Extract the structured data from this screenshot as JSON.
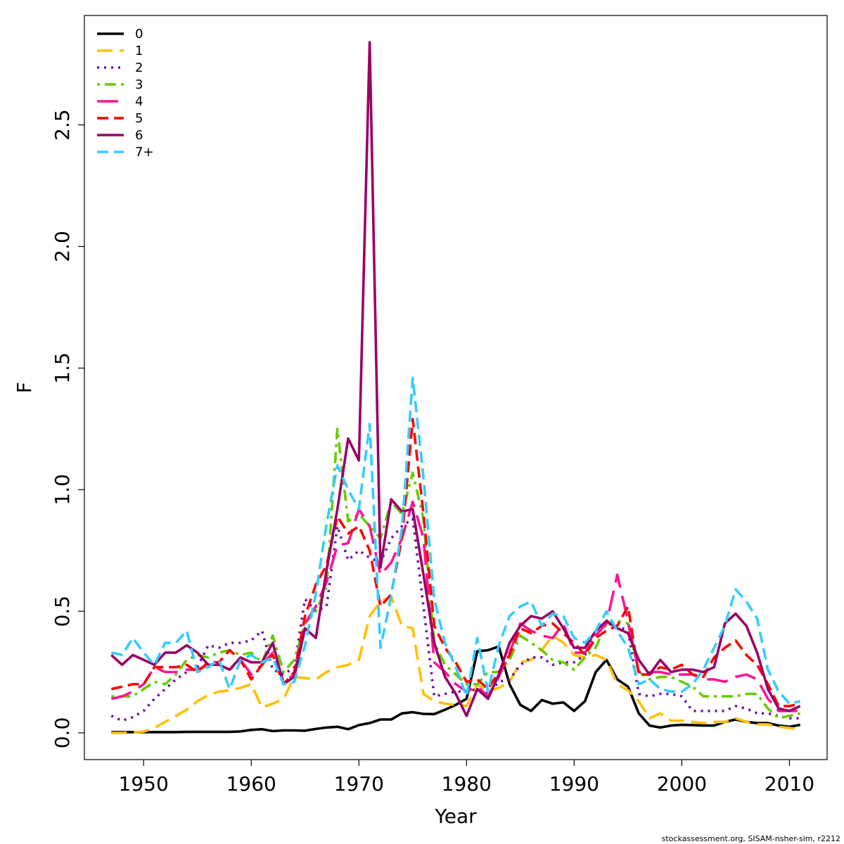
{
  "chart_data": {
    "type": "line",
    "xlabel": "Year",
    "ylabel": "F",
    "xlim": [
      1944.5,
      2013.5
    ],
    "ylim": [
      -0.11,
      2.95
    ],
    "xticks": [
      1950,
      1960,
      1970,
      1980,
      1990,
      2000,
      2010
    ],
    "yticks": [
      0.0,
      0.5,
      1.0,
      1.5,
      2.0,
      2.5
    ],
    "ytick_labels": [
      "0.0",
      "0.5",
      "1.0",
      "1.5",
      "2.0",
      "2.5"
    ],
    "legend_position": "top-left",
    "x": [
      1947,
      1948,
      1949,
      1950,
      1951,
      1952,
      1953,
      1954,
      1955,
      1956,
      1957,
      1958,
      1959,
      1960,
      1961,
      1962,
      1963,
      1964,
      1965,
      1966,
      1967,
      1968,
      1969,
      1970,
      1971,
      1972,
      1973,
      1974,
      1975,
      1976,
      1977,
      1978,
      1979,
      1980,
      1981,
      1982,
      1983,
      1984,
      1985,
      1986,
      1987,
      1988,
      1989,
      1990,
      1991,
      1992,
      1993,
      1994,
      1995,
      1996,
      1997,
      1998,
      1999,
      2000,
      2001,
      2002,
      2003,
      2004,
      2005,
      2006,
      2007,
      2008,
      2009,
      2010,
      2011
    ],
    "series": [
      {
        "name": "0",
        "color": "#000000",
        "dash": "solid",
        "values": [
          0.003,
          0.003,
          0.003,
          0.003,
          0.003,
          0.003,
          0.003,
          0.004,
          0.004,
          0.004,
          0.004,
          0.004,
          0.006,
          0.012,
          0.015,
          0.007,
          0.01,
          0.01,
          0.009,
          0.016,
          0.022,
          0.025,
          0.015,
          0.032,
          0.04,
          0.055,
          0.055,
          0.08,
          0.085,
          0.078,
          0.077,
          0.095,
          0.115,
          0.14,
          0.335,
          0.34,
          0.355,
          0.2,
          0.115,
          0.09,
          0.135,
          0.12,
          0.125,
          0.09,
          0.13,
          0.25,
          0.3,
          0.22,
          0.19,
          0.08,
          0.03,
          0.022,
          0.03,
          0.033,
          0.032,
          0.03,
          0.03,
          0.045,
          0.055,
          0.045,
          0.04,
          0.04,
          0.03,
          0.025,
          0.033
        ]
      },
      {
        "name": "1",
        "color": "#ffc000",
        "dash": "long",
        "values": [
          0.0,
          0.0,
          0.002,
          0.005,
          0.02,
          0.045,
          0.07,
          0.095,
          0.13,
          0.155,
          0.17,
          0.175,
          0.185,
          0.2,
          0.105,
          0.12,
          0.14,
          0.23,
          0.225,
          0.22,
          0.25,
          0.27,
          0.28,
          0.3,
          0.48,
          0.54,
          0.56,
          0.44,
          0.43,
          0.16,
          0.13,
          0.12,
          0.115,
          0.11,
          0.2,
          0.17,
          0.185,
          0.21,
          0.29,
          0.3,
          0.34,
          0.4,
          0.37,
          0.32,
          0.31,
          0.32,
          0.3,
          0.2,
          0.175,
          0.13,
          0.06,
          0.08,
          0.05,
          0.05,
          0.045,
          0.04,
          0.045,
          0.045,
          0.06,
          0.045,
          0.035,
          0.035,
          0.025,
          0.02,
          0.015
        ]
      },
      {
        "name": "2",
        "color": "#6a0dad",
        "dash": "dot",
        "values": [
          0.07,
          0.05,
          0.065,
          0.09,
          0.14,
          0.18,
          0.22,
          0.25,
          0.27,
          0.36,
          0.35,
          0.37,
          0.37,
          0.38,
          0.42,
          0.26,
          0.24,
          0.27,
          0.55,
          0.5,
          0.52,
          0.85,
          0.71,
          0.75,
          0.72,
          0.7,
          0.8,
          0.85,
          0.88,
          0.52,
          0.15,
          0.16,
          0.17,
          0.17,
          0.18,
          0.16,
          0.21,
          0.22,
          0.28,
          0.31,
          0.31,
          0.28,
          0.29,
          0.29,
          0.32,
          0.42,
          0.45,
          0.44,
          0.42,
          0.16,
          0.15,
          0.16,
          0.16,
          0.15,
          0.09,
          0.09,
          0.09,
          0.09,
          0.11,
          0.1,
          0.08,
          0.08,
          0.07,
          0.06,
          0.06
        ]
      },
      {
        "name": "3",
        "color": "#66cc00",
        "dash": "dotdash",
        "values": [
          0.15,
          0.15,
          0.15,
          0.18,
          0.21,
          0.2,
          0.24,
          0.3,
          0.32,
          0.31,
          0.33,
          0.34,
          0.32,
          0.33,
          0.29,
          0.4,
          0.25,
          0.3,
          0.45,
          0.5,
          0.6,
          1.25,
          0.87,
          0.9,
          0.85,
          0.8,
          0.95,
          0.9,
          1.07,
          0.88,
          0.37,
          0.28,
          0.24,
          0.2,
          0.2,
          0.25,
          0.25,
          0.3,
          0.4,
          0.37,
          0.34,
          0.3,
          0.29,
          0.26,
          0.31,
          0.35,
          0.45,
          0.46,
          0.45,
          0.25,
          0.22,
          0.23,
          0.23,
          0.21,
          0.19,
          0.15,
          0.15,
          0.15,
          0.15,
          0.16,
          0.16,
          0.1,
          0.06,
          0.07,
          0.08
        ]
      },
      {
        "name": "4",
        "color": "#ff1493",
        "dash": "longdash",
        "values": [
          0.14,
          0.15,
          0.17,
          0.2,
          0.27,
          0.25,
          0.25,
          0.26,
          0.26,
          0.28,
          0.28,
          0.26,
          0.3,
          0.24,
          0.28,
          0.33,
          0.21,
          0.24,
          0.45,
          0.52,
          0.62,
          0.77,
          0.78,
          0.92,
          0.85,
          0.65,
          0.7,
          0.8,
          0.95,
          0.8,
          0.29,
          0.25,
          0.2,
          0.17,
          0.19,
          0.15,
          0.23,
          0.33,
          0.45,
          0.42,
          0.4,
          0.39,
          0.45,
          0.33,
          0.33,
          0.4,
          0.45,
          0.65,
          0.46,
          0.25,
          0.25,
          0.25,
          0.24,
          0.24,
          0.24,
          0.22,
          0.22,
          0.21,
          0.23,
          0.24,
          0.22,
          0.14,
          0.09,
          0.09,
          0.09
        ]
      },
      {
        "name": "5",
        "color": "#ff0000",
        "dash": "dash",
        "values": [
          0.18,
          0.19,
          0.2,
          0.2,
          0.27,
          0.27,
          0.27,
          0.28,
          0.25,
          0.29,
          0.29,
          0.34,
          0.3,
          0.22,
          0.28,
          0.32,
          0.2,
          0.25,
          0.48,
          0.61,
          0.69,
          0.89,
          0.82,
          0.85,
          0.75,
          0.52,
          0.57,
          0.8,
          1.29,
          0.9,
          0.44,
          0.35,
          0.29,
          0.21,
          0.22,
          0.18,
          0.25,
          0.32,
          0.43,
          0.41,
          0.44,
          0.45,
          0.41,
          0.37,
          0.32,
          0.39,
          0.42,
          0.44,
          0.52,
          0.24,
          0.24,
          0.27,
          0.26,
          0.28,
          0.24,
          0.23,
          0.31,
          0.35,
          0.38,
          0.32,
          0.28,
          0.2,
          0.11,
          0.11,
          0.12
        ]
      },
      {
        "name": "6",
        "color": "#990066",
        "dash": "solid",
        "values": [
          0.32,
          0.28,
          0.32,
          0.3,
          0.28,
          0.33,
          0.33,
          0.36,
          0.33,
          0.28,
          0.28,
          0.26,
          0.31,
          0.29,
          0.29,
          0.37,
          0.2,
          0.23,
          0.43,
          0.39,
          0.67,
          0.92,
          1.21,
          1.12,
          2.84,
          0.68,
          0.96,
          0.91,
          0.92,
          0.65,
          0.37,
          0.23,
          0.16,
          0.07,
          0.18,
          0.14,
          0.24,
          0.37,
          0.44,
          0.48,
          0.47,
          0.5,
          0.43,
          0.35,
          0.35,
          0.42,
          0.46,
          0.43,
          0.41,
          0.3,
          0.24,
          0.3,
          0.25,
          0.26,
          0.26,
          0.25,
          0.27,
          0.45,
          0.49,
          0.44,
          0.33,
          0.18,
          0.1,
          0.09,
          0.11
        ]
      },
      {
        "name": "7+",
        "color": "#33ccff",
        "dash": "dash",
        "values": [
          0.33,
          0.32,
          0.39,
          0.33,
          0.28,
          0.37,
          0.37,
          0.42,
          0.25,
          0.27,
          0.3,
          0.18,
          0.3,
          0.32,
          0.29,
          0.31,
          0.2,
          0.21,
          0.36,
          0.57,
          0.86,
          1.1,
          1.0,
          0.92,
          1.27,
          0.35,
          0.56,
          0.84,
          1.46,
          1.05,
          0.55,
          0.37,
          0.27,
          0.15,
          0.39,
          0.17,
          0.36,
          0.48,
          0.52,
          0.54,
          0.44,
          0.49,
          0.48,
          0.39,
          0.37,
          0.42,
          0.5,
          0.42,
          0.35,
          0.2,
          0.22,
          0.18,
          0.17,
          0.17,
          0.2,
          0.26,
          0.35,
          0.44,
          0.59,
          0.54,
          0.47,
          0.26,
          0.17,
          0.12,
          0.13
        ]
      }
    ]
  },
  "credit": "stockassessment.org, SISAM-nsher-sim, r2212"
}
